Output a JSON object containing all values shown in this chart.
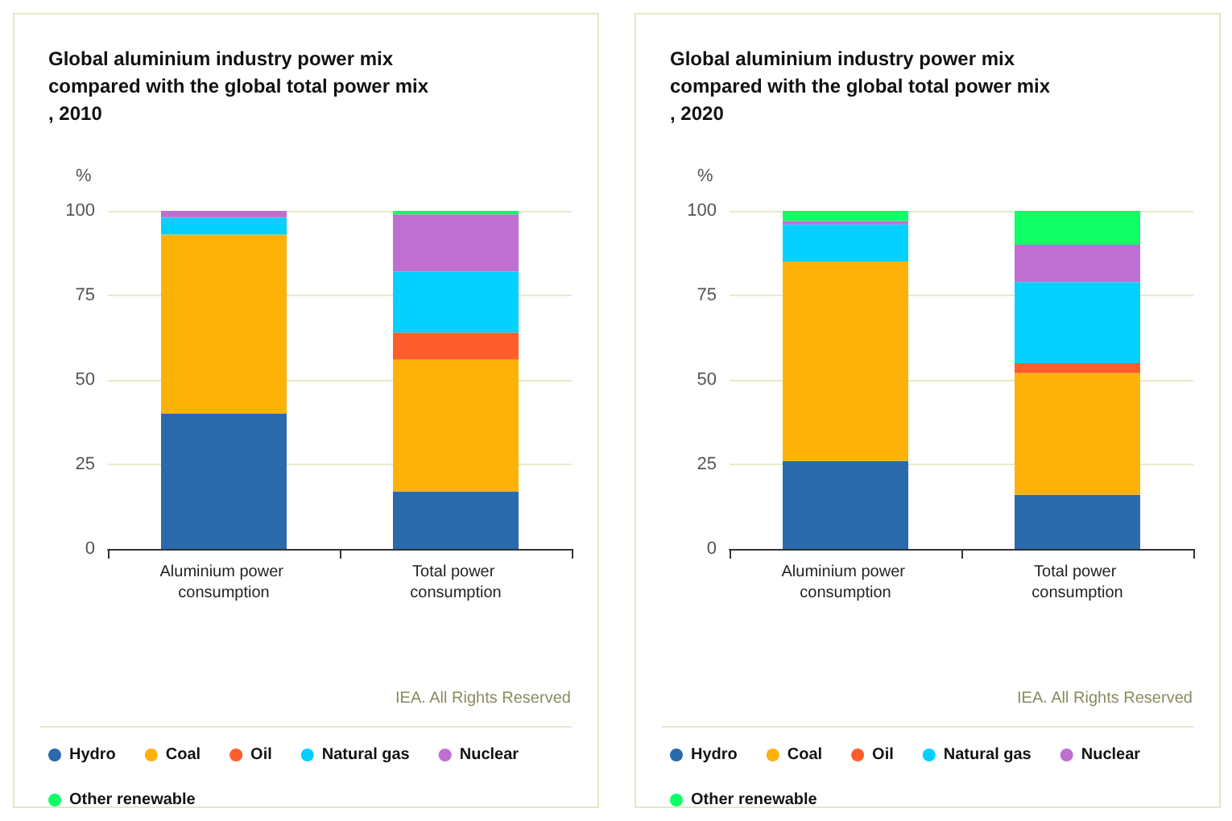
{
  "chart_data": [
    {
      "type": "bar",
      "title": "Global aluminium industry power mix compared with the global total power mix, 2010",
      "ylabel": "%",
      "categories": [
        "Aluminium power consumption",
        "Total power consumption"
      ],
      "stacked": true,
      "ylim": [
        0,
        100
      ],
      "yticks": [
        0,
        25,
        50,
        75,
        100
      ],
      "grid": "y",
      "legend": "bottom",
      "annotations": [
        "IEA. All Rights Reserved"
      ],
      "series": [
        {
          "name": "Hydro",
          "color": "#2a6aad",
          "values": [
            40,
            17
          ]
        },
        {
          "name": "Coal",
          "color": "#fdb20a",
          "values": [
            53,
            39
          ]
        },
        {
          "name": "Oil",
          "color": "#ff5d2b",
          "values": [
            0,
            8
          ]
        },
        {
          "name": "Natural gas",
          "color": "#04d1ff",
          "values": [
            5,
            18
          ]
        },
        {
          "name": "Nuclear",
          "color": "#bf6fcf",
          "values": [
            2,
            17
          ]
        },
        {
          "name": "Other renewable",
          "color": "#0eff66",
          "values": [
            0,
            1
          ]
        }
      ]
    },
    {
      "type": "bar",
      "title": "Global aluminium industry power mix compared with the global total power mix, 2020",
      "ylabel": "%",
      "categories": [
        "Aluminium power consumption",
        "Total power consumption"
      ],
      "stacked": true,
      "ylim": [
        0,
        100
      ],
      "yticks": [
        0,
        25,
        50,
        75,
        100
      ],
      "grid": "y",
      "legend": "bottom",
      "annotations": [
        "IEA. All Rights Reserved"
      ],
      "series": [
        {
          "name": "Hydro",
          "color": "#2a6aad",
          "values": [
            26,
            16
          ]
        },
        {
          "name": "Coal",
          "color": "#fdb20a",
          "values": [
            59,
            36
          ]
        },
        {
          "name": "Oil",
          "color": "#ff5d2b",
          "values": [
            0,
            3
          ]
        },
        {
          "name": "Natural gas",
          "color": "#04d1ff",
          "values": [
            11,
            24
          ]
        },
        {
          "name": "Nuclear",
          "color": "#bf6fcf",
          "values": [
            1,
            11
          ]
        },
        {
          "name": "Other renewable",
          "color": "#0eff66",
          "values": [
            3,
            10
          ]
        }
      ]
    }
  ]
}
